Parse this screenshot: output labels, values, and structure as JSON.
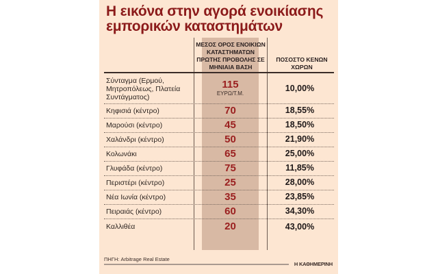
{
  "title": "Η εικόνα στην αγορά ενοικίασης εμπορικών καταστημάτων",
  "colors": {
    "background": "#fde6d2",
    "title": "#8b1a1a",
    "price_text": "#9a1f1f",
    "shaded_column": "#d8b9a4"
  },
  "table": {
    "headers": {
      "area": "",
      "price": "ΜΕΣΟΣ ΟΡΟΣ ΕΝΟΙΚΙΩΝ ΚΑΤΑΣΤΗΜΑΤΩΝ ΠΡΩΤΗΣ ΠΡΟΒΟΛΗΣ ΣΕ ΜΗΝΙΑΙΑ ΒΑΣΗ",
      "vacancy": "ΠΟΣΟΣΤΟ ΚΕΝΩΝ ΧΩΡΩΝ"
    },
    "unit_label": "ΕΥΡΩ/Τ.Μ.",
    "rows": [
      {
        "area": "Σύνταγμα (Ερμού, Μητροπόλεως, Πλατεία Συντάγματος)",
        "price": "115",
        "vacancy": "10,00%"
      },
      {
        "area": "Κηφισιά (κέντρο)",
        "price": "70",
        "vacancy": "18,55%"
      },
      {
        "area": "Μαρούσι (κέντρο)",
        "price": "45",
        "vacancy": "18,50%"
      },
      {
        "area": "Χαλάνδρι (κέντρο)",
        "price": "50",
        "vacancy": "21,90%"
      },
      {
        "area": "Κολωνάκι",
        "price": "65",
        "vacancy": "25,00%"
      },
      {
        "area": "Γλυφάδα (κέντρο)",
        "price": "75",
        "vacancy": "11,85%"
      },
      {
        "area": "Περιστέρι (κέντρο)",
        "price": "25",
        "vacancy": "28,00%"
      },
      {
        "area": "Νέα Ιωνία (κέντρο)",
        "price": "35",
        "vacancy": "23,85%"
      },
      {
        "area": "Πειραιάς (κέντρο)",
        "price": "60",
        "vacancy": "34,30%"
      },
      {
        "area": "Καλλιθέα",
        "price": "20",
        "vacancy": "43,00%"
      }
    ]
  },
  "footer": {
    "source": "ΠΗΓΗ: Arbitrage Real Estate",
    "brand": "Η ΚΑΘΗΜΕΡΙΝΗ"
  }
}
